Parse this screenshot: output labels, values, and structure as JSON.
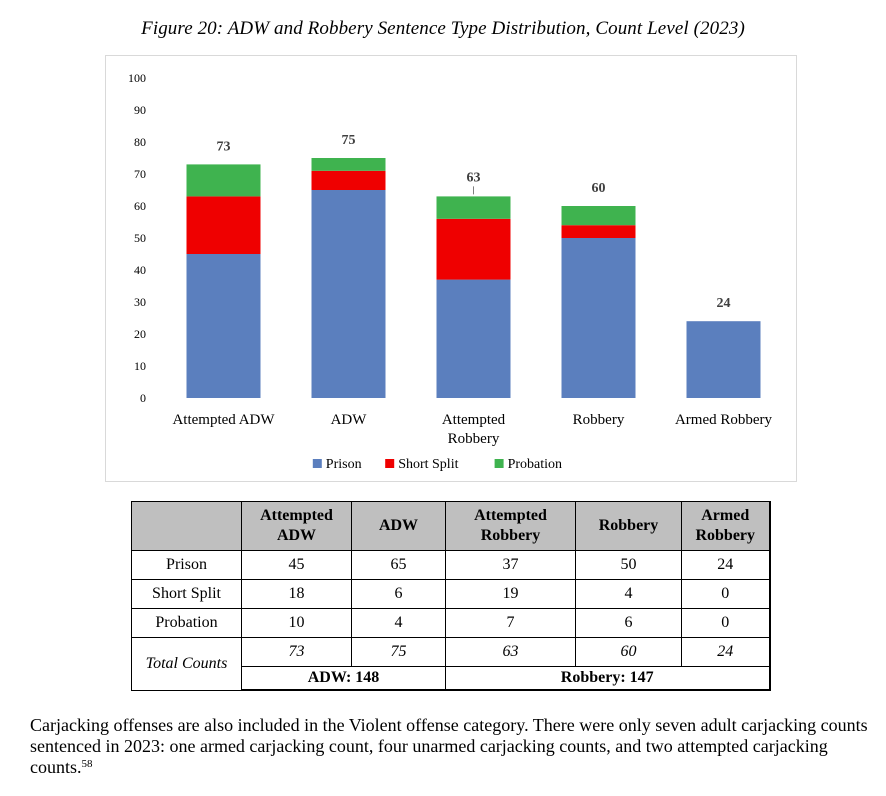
{
  "figure_title": "Figure 20: ADW and Robbery Sentence Type Distribution, Count Level (2023)",
  "colors": {
    "Prison": "#5b7fbe",
    "Short Split": "#ef0000",
    "Probation": "#3fb34f"
  },
  "chart_data": {
    "type": "bar",
    "stacked": true,
    "categories": [
      "Attempted ADW",
      "ADW",
      "Attempted Robbery",
      "Robbery",
      "Armed Robbery"
    ],
    "category_lines": [
      [
        "Attempted ADW"
      ],
      [
        "ADW"
      ],
      [
        "Attempted",
        "Robbery"
      ],
      [
        "Robbery"
      ],
      [
        "Armed Robbery"
      ]
    ],
    "series": [
      {
        "name": "Prison",
        "values": [
          45,
          65,
          37,
          50,
          24
        ]
      },
      {
        "name": "Short Split",
        "values": [
          18,
          6,
          19,
          4,
          0
        ]
      },
      {
        "name": "Probation",
        "values": [
          10,
          4,
          7,
          6,
          0
        ]
      }
    ],
    "totals": [
      73,
      75,
      63,
      60,
      24
    ],
    "ylim": [
      0,
      100
    ],
    "yticks": [
      0,
      10,
      20,
      30,
      40,
      50,
      60,
      70,
      80,
      90,
      100
    ],
    "legend": "bottom",
    "grid": false
  },
  "table": {
    "headers": [
      [
        "Attempted",
        "ADW"
      ],
      [
        "ADW"
      ],
      [
        "Attempted",
        "Robbery"
      ],
      [
        "Robbery"
      ],
      [
        "Armed",
        "Robbery"
      ]
    ],
    "rows": [
      {
        "label": "Prison",
        "values": [
          "45",
          "65",
          "37",
          "50",
          "24"
        ]
      },
      {
        "label": "Short Split",
        "values": [
          "18",
          "6",
          "19",
          "4",
          "0"
        ]
      },
      {
        "label": "Probation",
        "values": [
          "10",
          "4",
          "7",
          "6",
          "0"
        ]
      }
    ],
    "totals_label": "Total Counts",
    "totals": [
      "73",
      "75",
      "63",
      "60",
      "24"
    ],
    "group_totals": [
      "ADW: 148",
      "Robbery: 147"
    ]
  },
  "paragraph": {
    "text": "Carjacking offenses are also included in the Violent offense category. There were only seven adult carjacking counts sentenced in 2023: one armed carjacking count, four unarmed carjacking counts, and two attempted carjacking counts.",
    "footnote": "58"
  }
}
